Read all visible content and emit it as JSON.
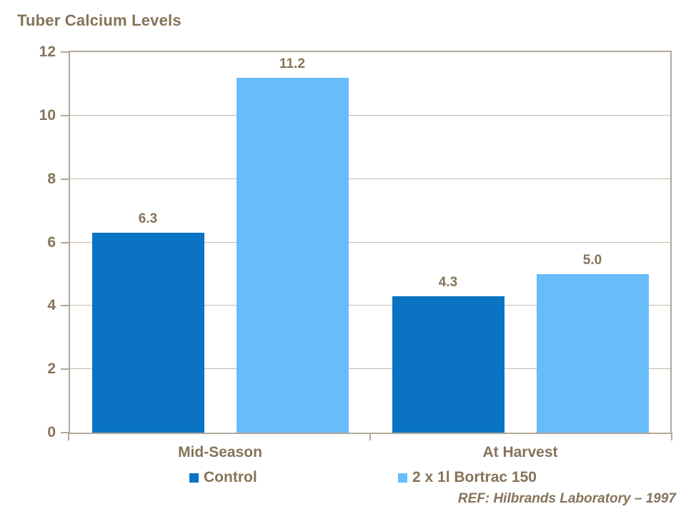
{
  "slide": {
    "title": "Tuber Calcium Levels",
    "reference": "REF: Hilbrands Laboratory – 1997"
  },
  "colors": {
    "background": "#FFFFFF",
    "text_brown": "#867359",
    "axis": "#B1A79B",
    "gridline": "#C2B9AE",
    "series_control": "#0A73C4",
    "series_bortrac": "#68BCFA"
  },
  "chart_data": {
    "type": "bar",
    "title": "Tuber Calcium Levels",
    "categories": [
      "Mid-Season",
      "At Harvest"
    ],
    "series": [
      {
        "name": "Control",
        "color": "#0A73C4",
        "values": [
          6.3,
          4.3
        ]
      },
      {
        "name": "2 x 1l Bortrac 150",
        "color": "#68BCFA",
        "values": [
          11.2,
          5.0
        ]
      }
    ],
    "data_labels": [
      [
        "6.3",
        "4.3"
      ],
      [
        "11.2",
        "5.0"
      ]
    ],
    "xlabel": "",
    "ylabel": "",
    "ylim": [
      0,
      12
    ],
    "yticks": [
      0,
      2,
      4,
      6,
      8,
      10,
      12
    ],
    "grid": true,
    "legend_position": "bottom",
    "annotation": "REF: Hilbrands Laboratory – 1997"
  }
}
